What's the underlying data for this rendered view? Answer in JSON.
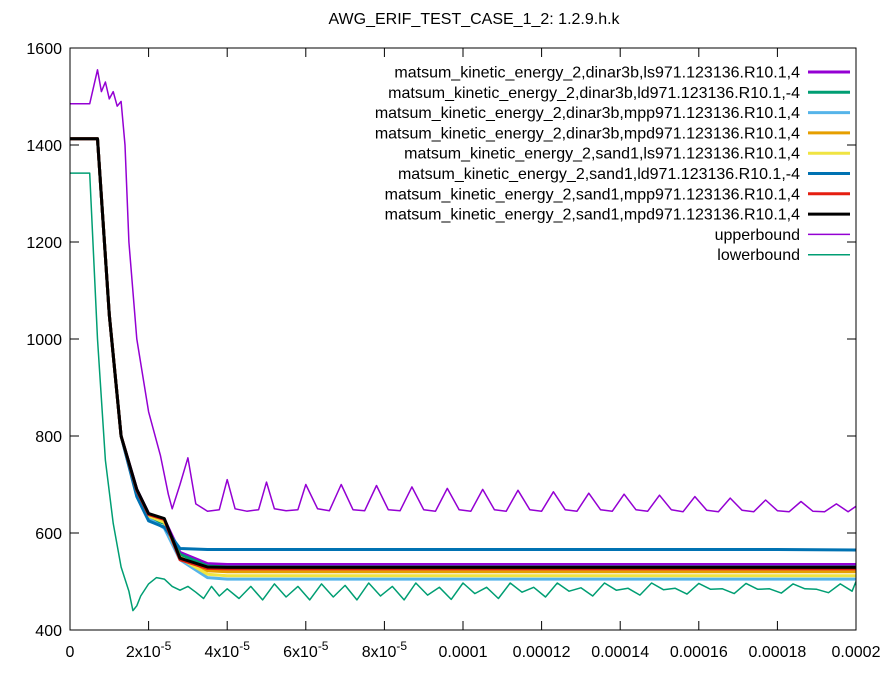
{
  "chart_data": {
    "type": "line",
    "title": "AWG_ERIF_TEST_CASE_1_2: 1.2.9.h.k",
    "xlabel": "",
    "ylabel": "",
    "xlim": [
      0,
      0.0002
    ],
    "ylim": [
      400,
      1600
    ],
    "grid": false,
    "legend_position": "top-right",
    "y_ticks": [
      {
        "value": 400,
        "label": "400"
      },
      {
        "value": 600,
        "label": "600"
      },
      {
        "value": 800,
        "label": "800"
      },
      {
        "value": 1000,
        "label": "1000"
      },
      {
        "value": 1200,
        "label": "1200"
      },
      {
        "value": 1400,
        "label": "1400"
      },
      {
        "value": 1600,
        "label": "1600"
      }
    ],
    "x_ticks": [
      {
        "value": 0,
        "mant": "0",
        "exp": ""
      },
      {
        "value": 2e-05,
        "mant": "2x10",
        "exp": "-5"
      },
      {
        "value": 4e-05,
        "mant": "4x10",
        "exp": "-5"
      },
      {
        "value": 6e-05,
        "mant": "6x10",
        "exp": "-5"
      },
      {
        "value": 8e-05,
        "mant": "8x10",
        "exp": "-5"
      },
      {
        "value": 0.0001,
        "mant": "0.0001",
        "exp": ""
      },
      {
        "value": 0.00012,
        "mant": "0.00012",
        "exp": ""
      },
      {
        "value": 0.00014,
        "mant": "0.00014",
        "exp": ""
      },
      {
        "value": 0.00016,
        "mant": "0.00016",
        "exp": ""
      },
      {
        "value": 0.00018,
        "mant": "0.00018",
        "exp": ""
      },
      {
        "value": 0.0002,
        "mant": "0.0002",
        "exp": ""
      }
    ],
    "series": [
      {
        "name": "matsum_kinetic_energy_2,dinar3b,ls971.123136.R10.1,4",
        "color": "#9400d3",
        "width": 3,
        "x": [
          0,
          7e-06,
          1e-05,
          1.3e-05,
          1.7e-05,
          2e-05,
          2.4e-05,
          2.8e-05,
          3.5e-05,
          4e-05,
          5e-05,
          6e-05,
          8e-05,
          0.0001,
          0.00012,
          0.00014,
          0.00016,
          0.00018,
          0.0002
        ],
        "y": [
          1413,
          1413,
          1050,
          800,
          690,
          640,
          628,
          560,
          537,
          535,
          535,
          535,
          535,
          535,
          535,
          535,
          535,
          535,
          535
        ]
      },
      {
        "name": "matsum_kinetic_energy_2,dinar3b,ld971.123136.R10.1,-4",
        "color": "#009e73",
        "width": 3,
        "x": [
          0,
          7e-06,
          1e-05,
          1.3e-05,
          1.7e-05,
          2e-05,
          2.4e-05,
          2.8e-05,
          3.5e-05,
          4e-05,
          5e-05,
          6e-05,
          8e-05,
          0.0001,
          0.00012,
          0.00014,
          0.00016,
          0.00018,
          0.0002
        ],
        "y": [
          1413,
          1413,
          1050,
          800,
          680,
          630,
          620,
          556,
          532,
          530,
          530,
          530,
          530,
          530,
          530,
          530,
          530,
          530,
          530
        ]
      },
      {
        "name": "matsum_kinetic_energy_2,dinar3b,mpp971.123136.R10.1,4",
        "color": "#56b4e9",
        "width": 3,
        "x": [
          0,
          7e-06,
          1e-05,
          1.3e-05,
          1.7e-05,
          2e-05,
          2.4e-05,
          2.8e-05,
          3.5e-05,
          4e-05,
          5e-05,
          6e-05,
          8e-05,
          0.0001,
          0.00012,
          0.00014,
          0.00016,
          0.00018,
          0.0002
        ],
        "y": [
          1413,
          1413,
          1050,
          800,
          680,
          630,
          610,
          545,
          508,
          505,
          505,
          505,
          505,
          505,
          505,
          505,
          505,
          505,
          505
        ]
      },
      {
        "name": "matsum_kinetic_energy_2,dinar3b,mpd971.123136.R10.1,4",
        "color": "#e69f00",
        "width": 3,
        "x": [
          0,
          7e-06,
          1e-05,
          1.3e-05,
          1.7e-05,
          2e-05,
          2.4e-05,
          2.8e-05,
          3.5e-05,
          4e-05,
          5e-05,
          6e-05,
          8e-05,
          0.0001,
          0.00012,
          0.00014,
          0.00016,
          0.00018,
          0.0002
        ],
        "y": [
          1413,
          1413,
          1050,
          800,
          685,
          635,
          625,
          550,
          522,
          520,
          520,
          520,
          520,
          520,
          520,
          520,
          520,
          520,
          520
        ]
      },
      {
        "name": "matsum_kinetic_energy_2,sand1,ls971.123136.R10.1,4",
        "color": "#f0e442",
        "width": 3,
        "x": [
          0,
          7e-06,
          1e-05,
          1.3e-05,
          1.7e-05,
          2e-05,
          2.4e-05,
          2.8e-05,
          3.5e-05,
          4e-05,
          5e-05,
          6e-05,
          8e-05,
          0.0001,
          0.00012,
          0.00014,
          0.00016,
          0.00018,
          0.0002
        ],
        "y": [
          1413,
          1413,
          1050,
          800,
          685,
          635,
          622,
          548,
          515,
          512,
          512,
          512,
          512,
          512,
          512,
          512,
          512,
          512,
          512
        ]
      },
      {
        "name": "matsum_kinetic_energy_2,sand1,ld971.123136.R10.1,-4",
        "color": "#0072b2",
        "width": 3,
        "x": [
          0,
          7e-06,
          1e-05,
          1.3e-05,
          1.7e-05,
          2e-05,
          2.4e-05,
          2.8e-05,
          3.5e-05,
          4e-05,
          5e-05,
          6e-05,
          8e-05,
          0.0001,
          0.00012,
          0.00014,
          0.00016,
          0.00018,
          0.0002
        ],
        "y": [
          1413,
          1413,
          1050,
          800,
          675,
          625,
          612,
          568,
          566,
          566,
          566,
          566,
          566,
          566,
          566,
          566,
          566,
          566,
          565
        ]
      },
      {
        "name": "matsum_kinetic_energy_2,sand1,mpp971.123136.R10.1,4",
        "color": "#e51e10",
        "width": 3,
        "x": [
          0,
          7e-06,
          1e-05,
          1.3e-05,
          1.7e-05,
          2e-05,
          2.4e-05,
          2.8e-05,
          3.5e-05,
          4e-05,
          5e-05,
          6e-05,
          8e-05,
          0.0001,
          0.00012,
          0.00014,
          0.00016,
          0.00018,
          0.0002
        ],
        "y": [
          1413,
          1413,
          1050,
          800,
          688,
          638,
          628,
          545,
          527,
          526,
          526,
          526,
          526,
          526,
          526,
          526,
          526,
          526,
          526
        ]
      },
      {
        "name": "matsum_kinetic_energy_2,sand1,mpd971.123136.R10.1,4",
        "color": "#000000",
        "width": 3,
        "x": [
          0,
          7e-06,
          1e-05,
          1.3e-05,
          1.7e-05,
          2e-05,
          2.4e-05,
          2.8e-05,
          3.5e-05,
          4e-05,
          5e-05,
          6e-05,
          8e-05,
          0.0001,
          0.00012,
          0.00014,
          0.00016,
          0.00018,
          0.0002
        ],
        "y": [
          1413,
          1413,
          1050,
          800,
          690,
          640,
          630,
          548,
          530,
          529,
          529,
          529,
          529,
          529,
          529,
          529,
          529,
          529,
          529
        ]
      },
      {
        "name": "upperbound",
        "color": "#9400d3",
        "width": 1.5,
        "x": [
          0,
          5e-06,
          7e-06,
          8e-06,
          9e-06,
          1e-05,
          1.1e-05,
          1.2e-05,
          1.3e-05,
          1.4e-05,
          1.5e-05,
          1.7e-05,
          2e-05,
          2.3e-05,
          2.5e-05,
          2.6e-05,
          2.8e-05,
          3e-05,
          3.2e-05,
          3.5e-05,
          3.8e-05,
          4e-05,
          4.2e-05,
          4.5e-05,
          4.8e-05,
          5e-05,
          5.2e-05,
          5.5e-05,
          5.8e-05,
          6e-05,
          6.3e-05,
          6.6e-05,
          6.9e-05,
          7.2e-05,
          7.5e-05,
          7.8e-05,
          8.1e-05,
          8.4e-05,
          8.7e-05,
          9e-05,
          9.3e-05,
          9.6e-05,
          9.9e-05,
          0.000102,
          0.000105,
          0.000108,
          0.000111,
          0.000114,
          0.000117,
          0.00012,
          0.000123,
          0.000126,
          0.000129,
          0.000132,
          0.000135,
          0.000138,
          0.000141,
          0.000144,
          0.000147,
          0.00015,
          0.000153,
          0.000156,
          0.000159,
          0.000162,
          0.000165,
          0.000168,
          0.000171,
          0.000174,
          0.000177,
          0.00018,
          0.000183,
          0.000186,
          0.000189,
          0.000192,
          0.000195,
          0.000198,
          0.0002
        ],
        "y": [
          1485,
          1485,
          1555,
          1510,
          1530,
          1495,
          1510,
          1480,
          1490,
          1400,
          1200,
          1000,
          850,
          760,
          680,
          650,
          700,
          755,
          660,
          645,
          648,
          710,
          650,
          645,
          648,
          705,
          650,
          646,
          648,
          700,
          650,
          646,
          700,
          648,
          646,
          698,
          648,
          646,
          695,
          648,
          645,
          692,
          648,
          645,
          690,
          648,
          645,
          688,
          648,
          645,
          685,
          648,
          645,
          682,
          648,
          645,
          680,
          648,
          645,
          678,
          648,
          644,
          675,
          647,
          644,
          672,
          647,
          644,
          668,
          646,
          644,
          665,
          645,
          644,
          660,
          644,
          655
        ]
      },
      {
        "name": "lowerbound",
        "color": "#009e73",
        "width": 1.5,
        "x": [
          0,
          5e-06,
          7e-06,
          9e-06,
          1.1e-05,
          1.3e-05,
          1.5e-05,
          1.6e-05,
          1.7e-05,
          1.8e-05,
          2e-05,
          2.2e-05,
          2.4e-05,
          2.6e-05,
          2.8e-05,
          3e-05,
          3.2e-05,
          3.4e-05,
          3.6e-05,
          3.8e-05,
          4e-05,
          4.3e-05,
          4.6e-05,
          4.9e-05,
          5.2e-05,
          5.5e-05,
          5.8e-05,
          6.1e-05,
          6.4e-05,
          6.7e-05,
          7e-05,
          7.3e-05,
          7.6e-05,
          7.9e-05,
          8.2e-05,
          8.5e-05,
          8.8e-05,
          9.1e-05,
          9.4e-05,
          9.7e-05,
          0.0001,
          0.000103,
          0.000106,
          0.000109,
          0.000112,
          0.000115,
          0.000118,
          0.000121,
          0.000124,
          0.000127,
          0.00013,
          0.000133,
          0.000136,
          0.000139,
          0.000142,
          0.000145,
          0.000148,
          0.000151,
          0.000154,
          0.000157,
          0.00016,
          0.000163,
          0.000166,
          0.000169,
          0.000172,
          0.000175,
          0.000178,
          0.000181,
          0.000184,
          0.000187,
          0.00019,
          0.000193,
          0.000196,
          0.000199,
          0.0002
        ],
        "y": [
          1342,
          1342,
          1000,
          750,
          620,
          530,
          480,
          440,
          450,
          470,
          495,
          508,
          505,
          490,
          482,
          490,
          478,
          465,
          490,
          470,
          485,
          465,
          490,
          462,
          495,
          468,
          490,
          462,
          495,
          468,
          492,
          462,
          497,
          470,
          490,
          462,
          497,
          472,
          488,
          463,
          497,
          475,
          488,
          465,
          497,
          478,
          488,
          468,
          497,
          480,
          487,
          470,
          497,
          482,
          486,
          472,
          497,
          483,
          486,
          474,
          496,
          484,
          485,
          475,
          496,
          484,
          485,
          476,
          495,
          485,
          484,
          477,
          495,
          480,
          500
        ]
      }
    ]
  }
}
